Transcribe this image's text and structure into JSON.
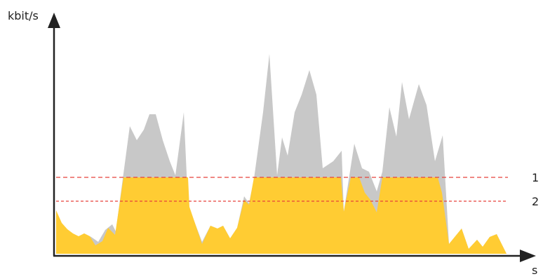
{
  "diagram": {
    "y_axis_label": "kbit/s",
    "x_axis_label": "s",
    "limit_lines": [
      {
        "label": "1"
      },
      {
        "label": "2"
      }
    ]
  },
  "colors": {
    "peak_fill": "#c8c8c8",
    "bitrate_fill": "#ffcc33",
    "limit_line": "#e8413a",
    "axis": "#222222"
  }
}
